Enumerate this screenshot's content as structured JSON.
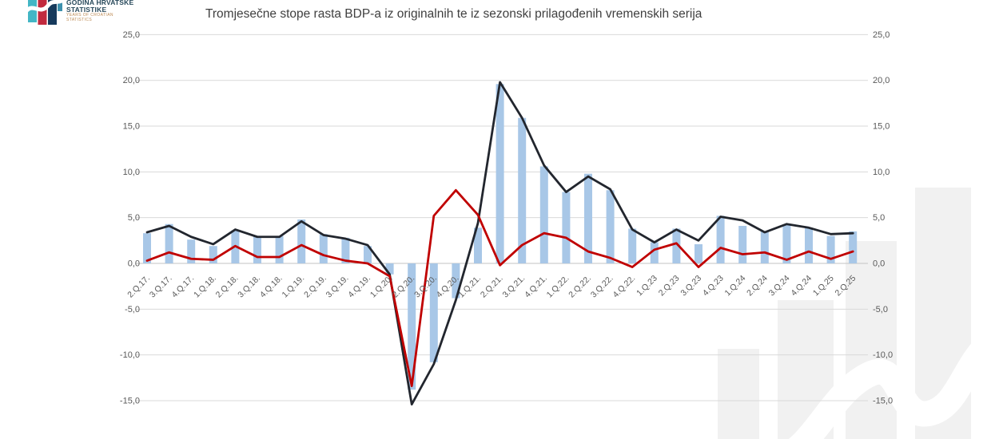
{
  "logo": {
    "title_line1": "GODINA HRVATSKE",
    "title_line2": "STATISTIKE",
    "subtitle_line1": "YEARS OF CROATIAN",
    "subtitle_line2": "STATISTICS",
    "mark_colors": [
      "#43b6c5",
      "#c22a3e",
      "#163a5c",
      "#3c90ad"
    ]
  },
  "chart_data": {
    "type": "bar",
    "title": "Tromjesečne stope rasta BDP-a iz originalnih te iz sezonski prilagođenih vremenskih serija",
    "categories": [
      "2.Q.17.",
      "3.Q.17.",
      "4.Q.17.",
      "1.Q.18.",
      "2.Q.18.",
      "3.Q.18.",
      "4.Q.18.",
      "1.Q.19.",
      "2.Q.19.",
      "3.Q.19.",
      "4.Q.19.",
      "1.Q.20.",
      "2.Q.20.",
      "3.Q.20.",
      "4.Q.20.",
      "1.Q.21.",
      "2.Q.21.",
      "3.Q.21.",
      "4.Q.21.",
      "1.Q.22.",
      "2.Q.22.",
      "3.Q.22.",
      "4.Q.22.",
      "1.Q.23",
      "2.Q.23",
      "3.Q.23",
      "4.Q.23",
      "1.Q.24",
      "2.Q.24",
      "3.Q.24",
      "4.Q.24",
      "1.Q.25",
      "2.Q.25"
    ],
    "series": [
      {
        "name": "bars-light-blue",
        "type": "bar",
        "color": "#a8c7e7",
        "values": [
          3.3,
          4.3,
          2.6,
          1.9,
          3.6,
          3.0,
          3.0,
          4.8,
          3.2,
          2.8,
          1.9,
          -1.2,
          -13.8,
          -10.8,
          -3.8,
          3.9,
          19.6,
          15.9,
          10.6,
          7.8,
          9.8,
          8.0,
          3.8,
          2.3,
          3.8,
          2.1,
          5.2,
          4.1,
          3.5,
          4.2,
          3.9,
          3.0,
          3.5
        ]
      },
      {
        "name": "line-black",
        "type": "line",
        "color": "#22262e",
        "values": [
          3.4,
          4.1,
          2.9,
          2.1,
          3.7,
          2.9,
          2.9,
          4.6,
          3.1,
          2.7,
          2.0,
          -1.2,
          -15.4,
          -11.0,
          -4.0,
          4.4,
          19.8,
          15.9,
          10.7,
          7.8,
          9.5,
          8.1,
          3.7,
          2.3,
          3.7,
          2.5,
          5.1,
          4.7,
          3.4,
          4.3,
          3.9,
          3.2,
          3.3
        ]
      },
      {
        "name": "line-red",
        "type": "line",
        "color": "#c00000",
        "values": [
          0.3,
          1.2,
          0.5,
          0.4,
          1.9,
          0.7,
          0.7,
          2.0,
          0.9,
          0.3,
          0.0,
          -1.4,
          -13.4,
          5.2,
          8.0,
          5.3,
          -0.2,
          2.0,
          3.3,
          2.8,
          1.3,
          0.6,
          -0.4,
          1.5,
          2.2,
          -0.4,
          1.7,
          1.0,
          1.2,
          0.4,
          1.3,
          0.5,
          1.3
        ]
      }
    ],
    "xlabel": "",
    "ylabel": "",
    "ylim": [
      -15,
      25
    ],
    "yticks": [
      25,
      20,
      15,
      10,
      5,
      0,
      -5,
      -10,
      -15
    ],
    "ytick_labels": [
      "25,0",
      "20,0",
      "15,0",
      "10,0",
      "5,0",
      "0,0",
      "-5,0",
      "-10,0",
      "-15,0"
    ],
    "y_axis_sides": "both",
    "grid": true,
    "legend_position": "none"
  }
}
